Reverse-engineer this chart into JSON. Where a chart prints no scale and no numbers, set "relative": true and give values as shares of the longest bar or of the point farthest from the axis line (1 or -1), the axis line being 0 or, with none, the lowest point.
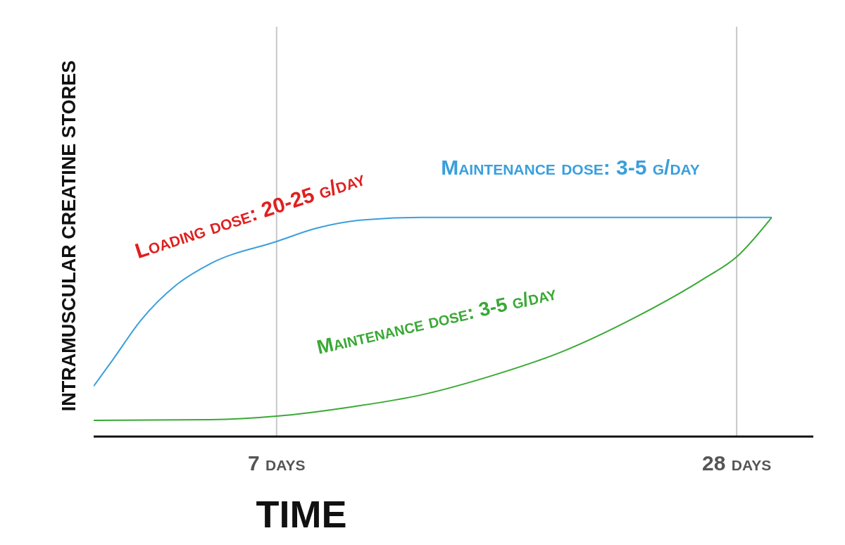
{
  "chart_data": {
    "type": "line",
    "relative": true,
    "xlabel": "TIME",
    "ylabel": "INTRAMUSCULAR CREATINE STORES",
    "xlim": [
      -1.35,
      31.5
    ],
    "xticks": [
      {
        "value": 7,
        "label": "7 days"
      },
      {
        "value": 28,
        "label": "28 days"
      }
    ],
    "grid": "x",
    "legend": false,
    "marker": "none",
    "line_style": "solid",
    "series": [
      {
        "name": "Maintenance dose: 3-5 g/day",
        "color": "#3a9fdc",
        "x": [
          -1.35,
          -0.48,
          0.8,
          2.4,
          4,
          7,
          8.8,
          11.1,
          13.6,
          20,
          26.5,
          29.6
        ],
        "values": [
          0.23,
          0.35,
          0.53,
          0.69,
          0.79,
          0.89,
          0.95,
          0.99,
          1.0,
          1.0,
          1.0,
          1.0
        ]
      },
      {
        "name": "Maintenance dose: 3-5 g/day",
        "color": "#3aa935",
        "x": [
          -1.35,
          4,
          7,
          10.4,
          13.6,
          16.9,
          20.1,
          23.3,
          26.5,
          28,
          29.6
        ],
        "values": [
          0.074,
          0.077,
          0.093,
          0.135,
          0.19,
          0.28,
          0.39,
          0.54,
          0.72,
          0.82,
          1.0
        ]
      }
    ],
    "annotations": [
      {
        "text": "Loading dose: 20-25 g/day",
        "x": 2.4,
        "y": 0.69
      }
    ]
  }
}
